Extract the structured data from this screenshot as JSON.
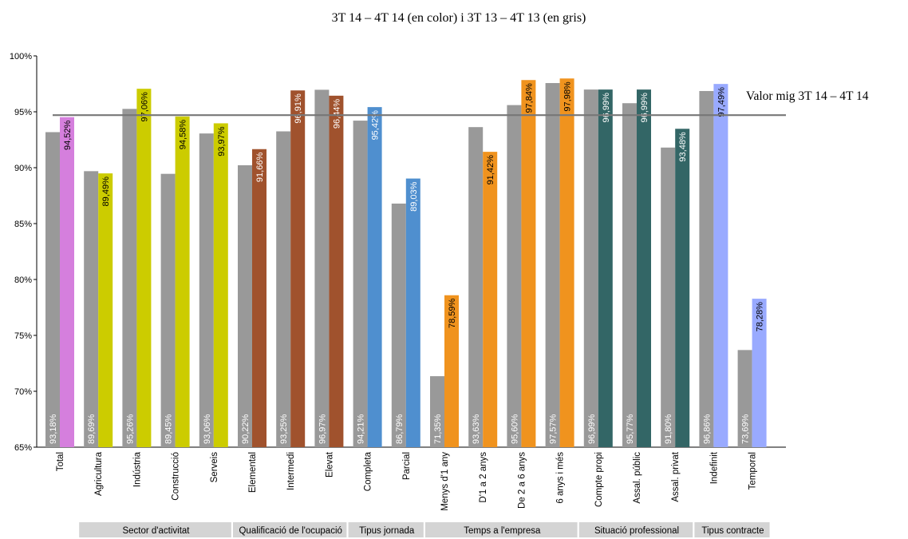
{
  "chart_data": {
    "type": "bar",
    "title": "3T 14 – 4T 14 (en color) i  3T 13 – 4T 13 (en gris)",
    "ylim": [
      65,
      100
    ],
    "yticks": [
      "65%",
      "70%",
      "75%",
      "80%",
      "85%",
      "90%",
      "95%",
      "100%"
    ],
    "grid": false,
    "reference_line": {
      "label": "Valor mig 3T 14 – 4T 14",
      "value": 94.7
    },
    "categories": [
      "Total",
      "Agricultura",
      "Indústria",
      "Construcció",
      "Serveis",
      "Elemental",
      "Intermedi",
      "Elevat",
      "Completa",
      "Parcial",
      "Menys d'1 any",
      "D'1 a 2 anys",
      "De 2 a 6 anys",
      "6 anys i més",
      "Compte propi",
      "Assal. públic",
      "Assal. privat",
      "Indefinit",
      "Temporal"
    ],
    "series": [
      {
        "period": "3T 13 – 4T 13",
        "values": [
          93.18,
          89.69,
          95.26,
          89.45,
          93.06,
          90.22,
          93.25,
          96.97,
          94.21,
          86.79,
          71.35,
          93.63,
          95.6,
          97.57,
          96.99,
          95.77,
          91.8,
          96.86,
          73.69
        ],
        "labels": [
          "93,18%",
          "89,69%",
          "95,26%",
          "89,45%",
          "93,06%",
          "90,22%",
          "93,25%",
          "96,97%",
          "94,21%",
          "86,79%",
          "71,35%",
          "93,63%",
          "95,60%",
          "97,57%",
          "96,99%",
          "95,77%",
          "91,80%",
          "96,86%",
          "73,69%"
        ],
        "color": "#999999"
      },
      {
        "period": "3T 14 – 4T 14",
        "values": [
          94.52,
          89.49,
          97.06,
          94.58,
          93.97,
          91.66,
          96.91,
          96.44,
          95.42,
          89.03,
          78.59,
          91.42,
          97.84,
          97.98,
          96.99,
          96.99,
          93.48,
          97.49,
          78.28
        ],
        "labels": [
          "94,52%",
          "89,49%",
          "97,06%",
          "94,58%",
          "93,97%",
          "91,66%",
          "96,91%",
          "96,44%",
          "95,42%",
          "89,03%",
          "78,59%",
          "91,42%",
          "97,84%",
          "97,98%",
          "96,99%",
          "96,99%",
          "93,48%",
          "97,49%",
          "78,28%"
        ],
        "colors": [
          "#d57fdd",
          "#cccc00",
          "#cccc00",
          "#cccc00",
          "#cccc00",
          "#a0522d",
          "#a0522d",
          "#a0522d",
          "#4f8fcf",
          "#4f8fcf",
          "#f0931e",
          "#f0931e",
          "#f0931e",
          "#f0931e",
          "#336666",
          "#336666",
          "#336666",
          "#99aaff",
          "#99aaff"
        ]
      }
    ],
    "groups": [
      {
        "label": "Sector d'activitat",
        "from": 1,
        "to": 4
      },
      {
        "label": "Qualificació de l'ocupació",
        "from": 5,
        "to": 7
      },
      {
        "label": "Tipus jornada",
        "from": 8,
        "to": 9
      },
      {
        "label": "Temps a l'empresa",
        "from": 10,
        "to": 13
      },
      {
        "label": "Situació professional",
        "from": 14,
        "to": 16
      },
      {
        "label": "Tipus contracte",
        "from": 17,
        "to": 18
      }
    ],
    "colors": {
      "gray_series": "#999999",
      "reference_line": "#777777",
      "group_band": "#d4d4d4",
      "label_on_gray": "#ffffff",
      "label_on_color_dark": "#ffffff",
      "label_on_color_light": "#000000"
    }
  }
}
